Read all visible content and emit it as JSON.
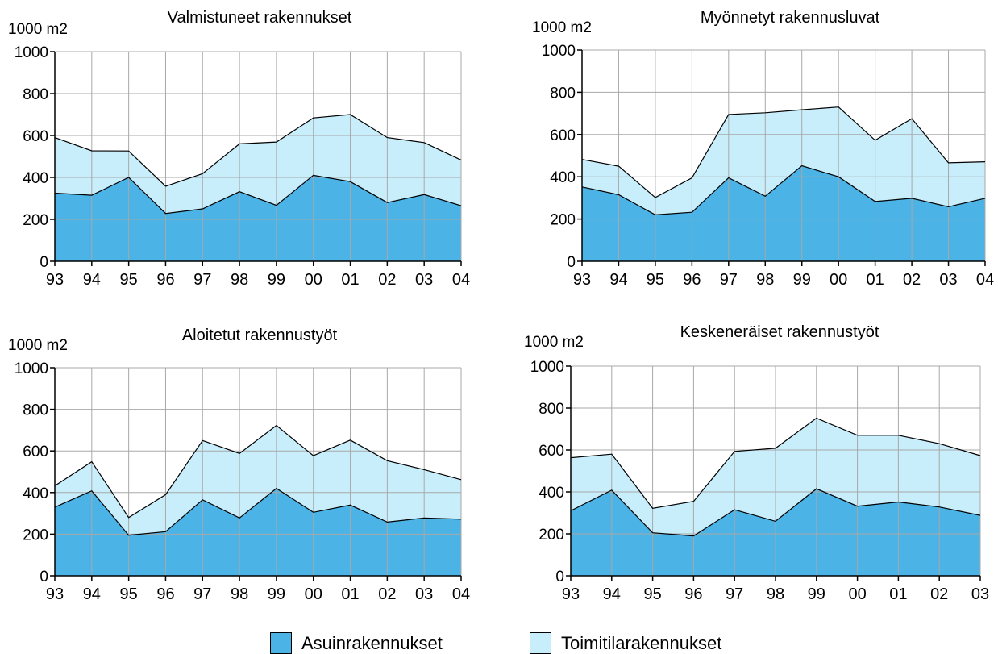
{
  "colors": {
    "residential": "#4BB3E6",
    "commercial": "#C8EEFB",
    "grid": "#A8A8A8",
    "outline": "#000000"
  },
  "legend": {
    "residential_label": "Asuinrakennukset",
    "commercial_label": "Toimitilarakennukset"
  },
  "chart_data": [
    {
      "type": "area",
      "stacked": true,
      "title": "Valmistuneet rakennukset",
      "ylabel": "1000 m2",
      "ylim": [
        0,
        1000
      ],
      "yticks": [
        "0",
        "200",
        "400",
        "600",
        "800",
        "1000"
      ],
      "categories": [
        "93",
        "94",
        "95",
        "96",
        "97",
        "98",
        "99",
        "00",
        "01",
        "02",
        "03",
        "04"
      ],
      "grid": true,
      "series": [
        {
          "name": "Asuinrakennukset",
          "values": [
            325,
            315,
            400,
            228,
            250,
            332,
            267,
            410,
            380,
            280,
            318,
            265
          ]
        },
        {
          "name": "Toimitilarakennukset",
          "values": [
            265,
            212,
            126,
            130,
            168,
            228,
            302,
            274,
            320,
            310,
            248,
            218
          ]
        }
      ]
    },
    {
      "type": "area",
      "stacked": true,
      "title": "Myönnetyt rakennusluvat",
      "ylabel": "1000 m2",
      "ylim": [
        0,
        1000
      ],
      "yticks": [
        "0",
        "200",
        "400",
        "600",
        "800",
        "1000"
      ],
      "categories": [
        "93",
        "94",
        "95",
        "96",
        "97",
        "98",
        "99",
        "00",
        "01",
        "02",
        "03",
        "04"
      ],
      "grid": true,
      "series": [
        {
          "name": "Asuinrakennukset",
          "values": [
            352,
            315,
            220,
            232,
            395,
            308,
            452,
            400,
            283,
            298,
            258,
            298
          ]
        },
        {
          "name": "Toimitilarakennukset",
          "values": [
            130,
            135,
            82,
            163,
            300,
            395,
            265,
            330,
            290,
            377,
            208,
            173
          ]
        }
      ]
    },
    {
      "type": "area",
      "stacked": true,
      "title": "Aloitetut rakennustyöt",
      "ylabel": "1000 m2",
      "ylim": [
        0,
        1000
      ],
      "yticks": [
        "0",
        "200",
        "400",
        "600",
        "800",
        "1000"
      ],
      "categories": [
        "93",
        "94",
        "95",
        "96",
        "97",
        "98",
        "99",
        "00",
        "01",
        "02",
        "03",
        "04"
      ],
      "grid": true,
      "series": [
        {
          "name": "Asuinrakennukset",
          "values": [
            330,
            408,
            195,
            212,
            365,
            278,
            420,
            305,
            340,
            258,
            278,
            272
          ]
        },
        {
          "name": "Toimitilarakennukset",
          "values": [
            102,
            140,
            85,
            178,
            285,
            310,
            302,
            272,
            312,
            295,
            232,
            190
          ]
        }
      ]
    },
    {
      "type": "area",
      "stacked": true,
      "title": "Keskeneräiset rakennustyöt",
      "ylabel": "1000 m2",
      "ylim": [
        0,
        1000
      ],
      "yticks": [
        "0",
        "200",
        "400",
        "600",
        "800",
        "1000"
      ],
      "categories": [
        "93",
        "94",
        "95",
        "96",
        "97",
        "98",
        "99",
        "00",
        "01",
        "02",
        "03"
      ],
      "grid": true,
      "series": [
        {
          "name": "Asuinrakennukset",
          "values": [
            310,
            408,
            205,
            190,
            315,
            260,
            415,
            332,
            352,
            328,
            288
          ]
        },
        {
          "name": "Toimitilarakennukset",
          "values": [
            253,
            172,
            117,
            165,
            278,
            348,
            337,
            338,
            318,
            302,
            285
          ]
        }
      ]
    }
  ]
}
